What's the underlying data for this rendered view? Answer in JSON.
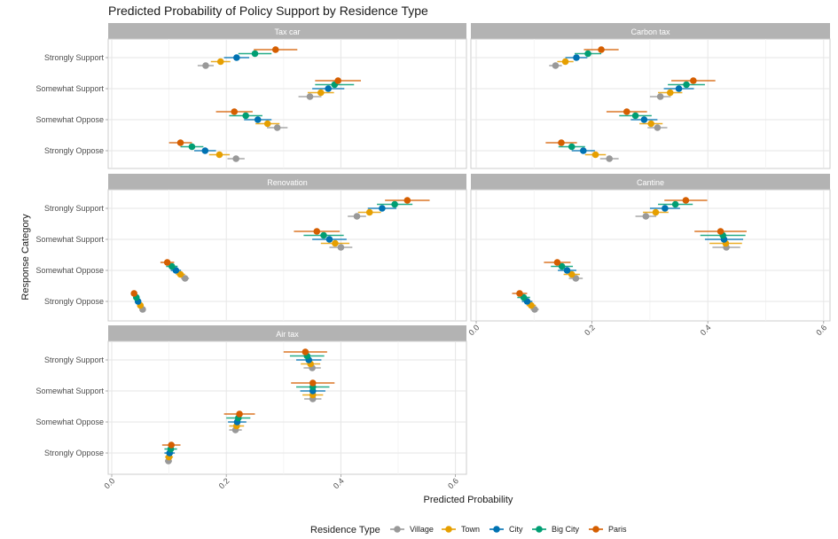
{
  "chart_data": {
    "type": "scatter",
    "subtype": "point-range faceted",
    "title": "Predicted Probability of Policy Support by Residence Type",
    "xlabel": "Predicted Probability",
    "ylabel": "Response Category",
    "xlim": [
      0,
      0.6
    ],
    "xticks": [
      "0.0",
      "0.2",
      "0.4",
      "0.6"
    ],
    "xtick_values": [
      0,
      0.2,
      0.4,
      0.6
    ],
    "grid": true,
    "categories": [
      "Strongly Support",
      "Somewhat Support",
      "Somewhat Oppose",
      "Strongly Oppose"
    ],
    "legend": {
      "title": "Residence Type",
      "position": "bottom",
      "entries": [
        {
          "name": "Village",
          "color": "#999999"
        },
        {
          "name": "Town",
          "color": "#E69F00"
        },
        {
          "name": "City",
          "color": "#0072B2"
        },
        {
          "name": "Big City",
          "color": "#009E73"
        },
        {
          "name": "Paris",
          "color": "#D55E00"
        }
      ]
    },
    "series_order": [
      "Village",
      "Town",
      "City",
      "Big City",
      "Paris"
    ],
    "panels": [
      {
        "name": "Tax car",
        "values": {
          "Strongly Support": {
            "Village": [
              0.164,
              0.15,
              0.178
            ],
            "Town": [
              0.19,
              0.173,
              0.207
            ],
            "City": [
              0.218,
              0.196,
              0.24
            ],
            "Big City": [
              0.25,
              0.221,
              0.279
            ],
            "Paris": [
              0.286,
              0.248,
              0.324
            ]
          },
          "Somewhat Support": {
            "Village": [
              0.346,
              0.326,
              0.366
            ],
            "Town": [
              0.365,
              0.342,
              0.388
            ],
            "City": [
              0.378,
              0.35,
              0.406
            ],
            "Big City": [
              0.389,
              0.355,
              0.423
            ],
            "Paris": [
              0.395,
              0.355,
              0.435
            ]
          },
          "Somewhat Oppose": {
            "Village": [
              0.289,
              0.271,
              0.307
            ],
            "Town": [
              0.272,
              0.251,
              0.293
            ],
            "City": [
              0.255,
              0.231,
              0.279
            ],
            "Big City": [
              0.234,
              0.205,
              0.263
            ],
            "Paris": [
              0.214,
              0.182,
              0.246
            ]
          },
          "Strongly Oppose": {
            "Village": [
              0.217,
              0.202,
              0.232
            ],
            "Town": [
              0.188,
              0.17,
              0.206
            ],
            "City": [
              0.163,
              0.144,
              0.182
            ],
            "Big City": [
              0.14,
              0.12,
              0.16
            ],
            "Paris": [
              0.12,
              0.1,
              0.14
            ]
          }
        }
      },
      {
        "name": "Carbon tax",
        "values": {
          "Strongly Support": {
            "Village": [
              0.137,
              0.126,
              0.148
            ],
            "Town": [
              0.154,
              0.14,
              0.168
            ],
            "City": [
              0.173,
              0.154,
              0.192
            ],
            "Big City": [
              0.193,
              0.17,
              0.216
            ],
            "Paris": [
              0.216,
              0.186,
              0.246
            ]
          },
          "Somewhat Support": {
            "Village": [
              0.318,
              0.3,
              0.336
            ],
            "Town": [
              0.335,
              0.314,
              0.356
            ],
            "City": [
              0.35,
              0.324,
              0.376
            ],
            "Big City": [
              0.363,
              0.331,
              0.395
            ],
            "Paris": [
              0.375,
              0.337,
              0.413
            ]
          },
          "Somewhat Oppose": {
            "Village": [
              0.313,
              0.296,
              0.33
            ],
            "Town": [
              0.302,
              0.282,
              0.322
            ],
            "City": [
              0.29,
              0.267,
              0.313
            ],
            "Big City": [
              0.275,
              0.247,
              0.303
            ],
            "Paris": [
              0.26,
              0.225,
              0.295
            ]
          },
          "Strongly Oppose": {
            "Village": [
              0.23,
              0.214,
              0.246
            ],
            "Town": [
              0.206,
              0.188,
              0.224
            ],
            "City": [
              0.185,
              0.165,
              0.205
            ],
            "Big City": [
              0.165,
              0.142,
              0.188
            ],
            "Paris": [
              0.147,
              0.12,
              0.174
            ]
          }
        }
      },
      {
        "name": "Renovation",
        "values": {
          "Strongly Support": {
            "Village": [
              0.428,
              0.412,
              0.444
            ],
            "Town": [
              0.45,
              0.43,
              0.47
            ],
            "City": [
              0.472,
              0.447,
              0.497
            ],
            "Big City": [
              0.494,
              0.463,
              0.525
            ],
            "Paris": [
              0.516,
              0.477,
              0.555
            ]
          },
          "Somewhat Support": {
            "Village": [
              0.4,
              0.38,
              0.42
            ],
            "Town": [
              0.39,
              0.365,
              0.415
            ],
            "City": [
              0.38,
              0.35,
              0.41
            ],
            "Big City": [
              0.37,
              0.335,
              0.405
            ],
            "Paris": [
              0.358,
              0.318,
              0.398
            ]
          },
          "Somewhat Oppose": {
            "Village": [
              0.128,
              0.121,
              0.135
            ],
            "Town": [
              0.12,
              0.112,
              0.128
            ],
            "City": [
              0.112,
              0.103,
              0.121
            ],
            "Big City": [
              0.105,
              0.095,
              0.115
            ],
            "Paris": [
              0.097,
              0.085,
              0.109
            ]
          },
          "Strongly Oppose": {
            "Village": [
              0.054,
              0.05,
              0.058
            ],
            "Town": [
              0.05,
              0.046,
              0.054
            ],
            "City": [
              0.046,
              0.042,
              0.05
            ],
            "Big City": [
              0.043,
              0.038,
              0.048
            ],
            "Paris": [
              0.039,
              0.034,
              0.044
            ]
          }
        }
      },
      {
        "name": "Cantine",
        "values": {
          "Strongly Support": {
            "Village": [
              0.293,
              0.275,
              0.311
            ],
            "Town": [
              0.31,
              0.288,
              0.332
            ],
            "City": [
              0.326,
              0.3,
              0.352
            ],
            "Big City": [
              0.344,
              0.314,
              0.374
            ],
            "Paris": [
              0.362,
              0.325,
              0.399
            ]
          },
          "Somewhat Support": {
            "Village": [
              0.432,
              0.408,
              0.456
            ],
            "Town": [
              0.431,
              0.403,
              0.459
            ],
            "City": [
              0.428,
              0.395,
              0.461
            ],
            "Big City": [
              0.426,
              0.387,
              0.465
            ],
            "Paris": [
              0.422,
              0.377,
              0.467
            ]
          },
          "Somewhat Oppose": {
            "Village": [
              0.172,
              0.16,
              0.184
            ],
            "Town": [
              0.165,
              0.151,
              0.179
            ],
            "City": [
              0.157,
              0.141,
              0.173
            ],
            "Big City": [
              0.148,
              0.129,
              0.167
            ],
            "Paris": [
              0.14,
              0.117,
              0.163
            ]
          },
          "Strongly Oppose": {
            "Village": [
              0.101,
              0.094,
              0.108
            ],
            "Town": [
              0.095,
              0.087,
              0.103
            ],
            "City": [
              0.088,
              0.079,
              0.097
            ],
            "Big City": [
              0.082,
              0.071,
              0.093
            ],
            "Paris": [
              0.075,
              0.062,
              0.088
            ]
          }
        }
      },
      {
        "name": "Air tax",
        "values": {
          "Strongly Support": {
            "Village": [
              0.35,
              0.335,
              0.365
            ],
            "Town": [
              0.347,
              0.33,
              0.364
            ],
            "City": [
              0.344,
              0.322,
              0.366
            ],
            "Big City": [
              0.341,
              0.311,
              0.371
            ],
            "Paris": [
              0.338,
              0.3,
              0.376
            ]
          },
          "Somewhat Support": {
            "Village": [
              0.351,
              0.336,
              0.366
            ],
            "Town": [
              0.351,
              0.333,
              0.369
            ],
            "City": [
              0.351,
              0.329,
              0.373
            ],
            "Big City": [
              0.351,
              0.322,
              0.38
            ],
            "Paris": [
              0.351,
              0.313,
              0.389
            ]
          },
          "Somewhat Oppose": {
            "Village": [
              0.216,
              0.205,
              0.227
            ],
            "Town": [
              0.218,
              0.205,
              0.231
            ],
            "City": [
              0.219,
              0.203,
              0.235
            ],
            "Big City": [
              0.221,
              0.2,
              0.242
            ],
            "Paris": [
              0.223,
              0.196,
              0.25
            ]
          },
          "Strongly Oppose": {
            "Village": [
              0.099,
              0.093,
              0.105
            ],
            "Town": [
              0.1,
              0.093,
              0.107
            ],
            "City": [
              0.101,
              0.092,
              0.11
            ],
            "Big City": [
              0.103,
              0.092,
              0.114
            ],
            "Paris": [
              0.104,
              0.088,
              0.12
            ]
          }
        }
      }
    ],
    "value_format": "[estimate, lower, upper]"
  }
}
